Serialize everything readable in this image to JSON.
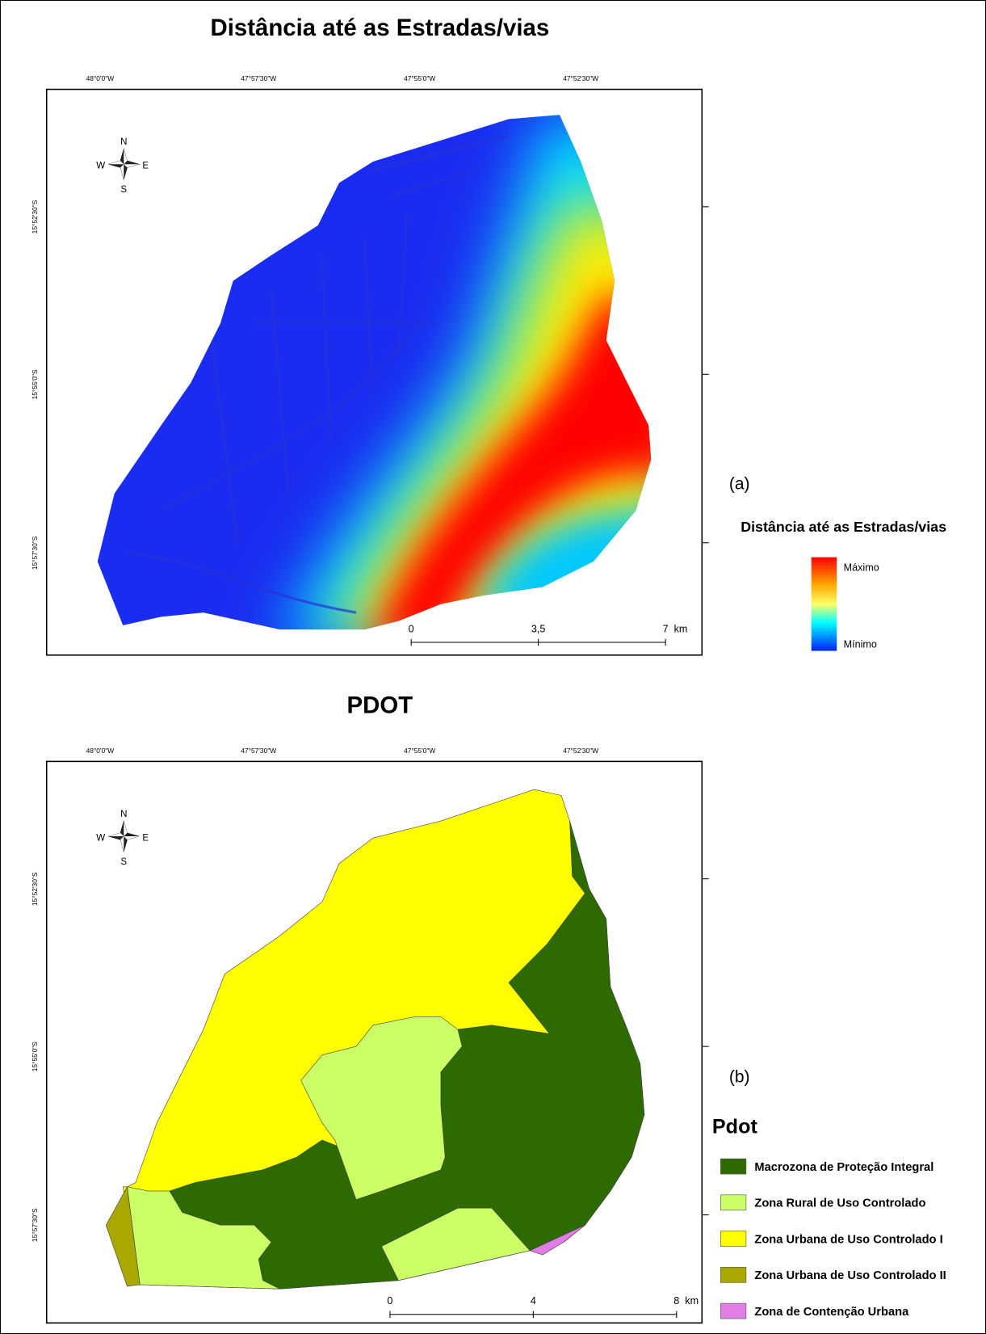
{
  "maps": [
    {
      "title": "Distância até as Estradas/vias",
      "lon_labels": [
        "48°0'0\"W",
        "47°57'30\"W",
        "47°55'0\"W",
        "47°52'30\"W"
      ],
      "lat_labels": [
        "15°52'30\"S",
        "15°55'0\"S",
        "15°57'30\"S"
      ],
      "compass": {
        "n": "N",
        "e": "E",
        "s": "S",
        "w": "W"
      },
      "scale_bar": {
        "ticks": [
          "0",
          "3,5",
          "7"
        ],
        "unit": "km"
      },
      "panel_label": "(a)",
      "legend": {
        "title": "Distância até as Estradas/vias",
        "high": "Máximo",
        "low": "Mínimo"
      }
    },
    {
      "title": "PDOT",
      "lon_labels": [
        "48°0'0\"W",
        "47°57'30\"W",
        "47°55'0\"W",
        "47°52'30\"W"
      ],
      "lat_labels": [
        "15°52'30\"S",
        "15°55'0\"S",
        "15°57'30\"S"
      ],
      "compass": {
        "n": "N",
        "e": "E",
        "s": "S",
        "w": "W"
      },
      "scale_bar": {
        "ticks": [
          "0",
          "4",
          "8"
        ],
        "unit": "km"
      },
      "panel_label": "(b)",
      "legend": {
        "title": "Pdot",
        "items": [
          {
            "label": "Macrozona de Proteção Integral",
            "color": "#2d6a00"
          },
          {
            "label": "Zona Rural de Uso Controlado",
            "color": "#ccff66"
          },
          {
            "label": "Zona Urbana de Uso Controlado I",
            "color": "#ffff00"
          },
          {
            "label": "Zona Urbana de Uso Controlado II",
            "color": "#a8a800"
          },
          {
            "label": "Zona de Contenção Urbana",
            "color": "#e27de5"
          }
        ]
      }
    }
  ]
}
